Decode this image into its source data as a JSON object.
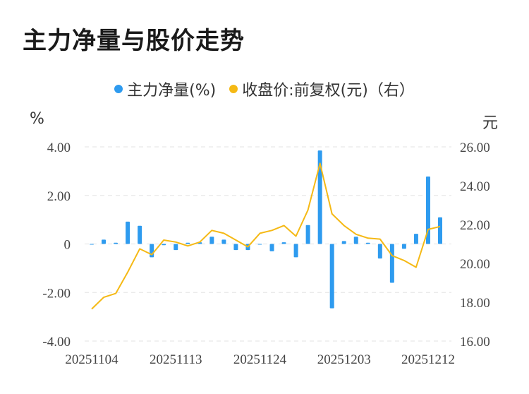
{
  "title": "主力净量与股价走势",
  "legend": {
    "series1": "主力净量(%)",
    "series2": "收盘价:前复权(元)（右）"
  },
  "colors": {
    "bar": "#2e9bef",
    "line": "#f5b915",
    "grid": "#e3e3e3"
  },
  "chart_data": {
    "type": "bar",
    "title": "主力净量与股价走势",
    "left_axis": {
      "unit_label": "%",
      "ticks": [
        "4.00",
        "2.00",
        "0",
        "-2.00",
        "-4.00"
      ],
      "range": [
        -4,
        4
      ]
    },
    "right_axis": {
      "unit_label": "元",
      "ticks": [
        "26.00",
        "24.00",
        "22.00",
        "20.00",
        "18.00",
        "16.00"
      ],
      "range": [
        16,
        26
      ]
    },
    "x_tick_labels": [
      "20251104",
      "20251113",
      "20251124",
      "20251203",
      "20251212"
    ],
    "x_tick_index": [
      0,
      7,
      14,
      21,
      28
    ],
    "grid": true,
    "legend_position": "top",
    "series": [
      {
        "name": "主力净量(%)",
        "type": "bar",
        "axis": "left",
        "values": [
          -0.03,
          0.18,
          0.05,
          0.92,
          0.75,
          -0.55,
          -0.05,
          -0.25,
          0.05,
          0.07,
          0.3,
          0.18,
          -0.25,
          -0.25,
          -0.03,
          -0.3,
          0.07,
          -0.55,
          0.78,
          3.85,
          -2.65,
          0.12,
          0.3,
          0.05,
          -0.6,
          -1.6,
          -0.2,
          0.42,
          2.78,
          1.1
        ]
      },
      {
        "name": "收盘价:前复权(元)（右）",
        "type": "line",
        "axis": "right",
        "values": [
          17.65,
          18.25,
          18.45,
          19.55,
          20.75,
          20.45,
          21.2,
          21.1,
          20.9,
          21.1,
          21.7,
          21.55,
          21.2,
          20.85,
          21.55,
          21.7,
          21.95,
          21.4,
          22.75,
          25.15,
          22.55,
          21.95,
          21.5,
          21.3,
          21.25,
          20.4,
          20.15,
          19.8,
          21.75,
          21.9
        ]
      }
    ]
  }
}
